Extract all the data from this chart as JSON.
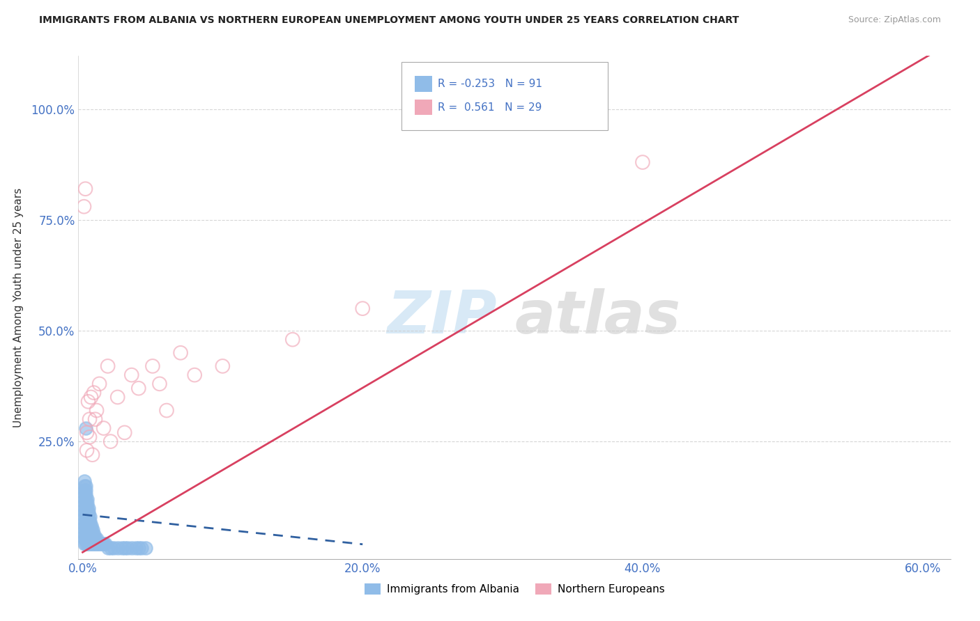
{
  "title": "IMMIGRANTS FROM ALBANIA VS NORTHERN EUROPEAN UNEMPLOYMENT AMONG YOUTH UNDER 25 YEARS CORRELATION CHART",
  "source": "Source: ZipAtlas.com",
  "ylabel": "Unemployment Among Youth under 25 years",
  "watermark_zip": "ZIP",
  "watermark_atlas": "atlas",
  "xlim": [
    -0.003,
    0.62
  ],
  "ylim": [
    -0.015,
    1.12
  ],
  "xtick_labels": [
    "0.0%",
    "20.0%",
    "40.0%",
    "60.0%"
  ],
  "xtick_vals": [
    0.0,
    0.2,
    0.4,
    0.6
  ],
  "ytick_labels": [
    "25.0%",
    "50.0%",
    "75.0%",
    "100.0%"
  ],
  "ytick_vals": [
    0.25,
    0.5,
    0.75,
    1.0
  ],
  "series_blue": {
    "label": "Immigrants from Albania",
    "R": -0.253,
    "N": 91,
    "color": "#90bce8",
    "trend_color": "#3060a0",
    "x": [
      0.001,
      0.001,
      0.001,
      0.001,
      0.001,
      0.001,
      0.001,
      0.001,
      0.001,
      0.001,
      0.001,
      0.001,
      0.001,
      0.001,
      0.001,
      0.002,
      0.002,
      0.002,
      0.002,
      0.002,
      0.002,
      0.002,
      0.002,
      0.002,
      0.002,
      0.002,
      0.002,
      0.002,
      0.002,
      0.002,
      0.003,
      0.003,
      0.003,
      0.003,
      0.003,
      0.003,
      0.003,
      0.003,
      0.003,
      0.003,
      0.003,
      0.004,
      0.004,
      0.004,
      0.004,
      0.004,
      0.004,
      0.004,
      0.004,
      0.004,
      0.005,
      0.005,
      0.005,
      0.005,
      0.005,
      0.005,
      0.005,
      0.006,
      0.006,
      0.006,
      0.006,
      0.006,
      0.007,
      0.007,
      0.007,
      0.007,
      0.008,
      0.008,
      0.008,
      0.009,
      0.009,
      0.01,
      0.01,
      0.011,
      0.012,
      0.013,
      0.014,
      0.015,
      0.016,
      0.018,
      0.02,
      0.022,
      0.025,
      0.028,
      0.03,
      0.032,
      0.035,
      0.038,
      0.04,
      0.042,
      0.045
    ],
    "y": [
      0.02,
      0.03,
      0.04,
      0.05,
      0.06,
      0.07,
      0.08,
      0.09,
      0.1,
      0.11,
      0.12,
      0.13,
      0.14,
      0.15,
      0.16,
      0.02,
      0.03,
      0.04,
      0.05,
      0.06,
      0.07,
      0.08,
      0.09,
      0.1,
      0.11,
      0.12,
      0.13,
      0.14,
      0.15,
      0.28,
      0.02,
      0.03,
      0.04,
      0.05,
      0.06,
      0.07,
      0.08,
      0.09,
      0.1,
      0.11,
      0.12,
      0.02,
      0.03,
      0.04,
      0.05,
      0.06,
      0.07,
      0.08,
      0.09,
      0.1,
      0.02,
      0.03,
      0.04,
      0.05,
      0.06,
      0.07,
      0.08,
      0.02,
      0.03,
      0.04,
      0.05,
      0.06,
      0.02,
      0.03,
      0.04,
      0.05,
      0.02,
      0.03,
      0.04,
      0.02,
      0.03,
      0.02,
      0.03,
      0.02,
      0.02,
      0.02,
      0.02,
      0.02,
      0.02,
      0.01,
      0.01,
      0.01,
      0.01,
      0.01,
      0.01,
      0.01,
      0.01,
      0.01,
      0.01,
      0.01,
      0.01
    ]
  },
  "series_pink": {
    "label": "Northern Europeans",
    "R": 0.561,
    "N": 29,
    "color": "#f0a8b8",
    "trend_color": "#d84060",
    "x": [
      0.001,
      0.002,
      0.003,
      0.003,
      0.004,
      0.005,
      0.005,
      0.006,
      0.007,
      0.008,
      0.009,
      0.01,
      0.012,
      0.015,
      0.018,
      0.02,
      0.025,
      0.03,
      0.035,
      0.04,
      0.05,
      0.055,
      0.06,
      0.07,
      0.08,
      0.1,
      0.15,
      0.2,
      0.4
    ],
    "y": [
      0.78,
      0.82,
      0.27,
      0.23,
      0.34,
      0.26,
      0.3,
      0.35,
      0.22,
      0.36,
      0.3,
      0.32,
      0.38,
      0.28,
      0.42,
      0.25,
      0.35,
      0.27,
      0.4,
      0.37,
      0.42,
      0.38,
      0.32,
      0.45,
      0.4,
      0.42,
      0.48,
      0.55,
      0.88
    ]
  },
  "blue_color": "#4472c4",
  "pink_color": "#d84060",
  "axis_color": "#4472c4",
  "legend_text_color": "#4472c4"
}
